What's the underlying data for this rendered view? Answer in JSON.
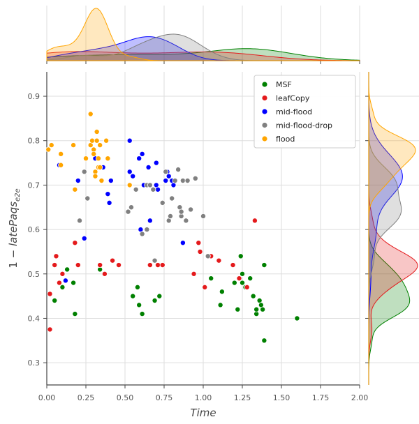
{
  "chart_data": {
    "type": "scatter",
    "title": "",
    "xlabel": "Time",
    "ylabel": "1 - latePaqs_e2e",
    "ylabel_parts": {
      "prefix": "1 − ",
      "main": "latePaqs",
      "sub": "e2e"
    },
    "xlim": [
      0,
      2
    ],
    "ylim": [
      0.25,
      0.955
    ],
    "xticks": [
      0.0,
      0.25,
      0.5,
      0.75,
      1.0,
      1.25,
      1.5,
      1.75,
      2.0
    ],
    "xtick_labels": [
      "0.00",
      "0.25",
      "0.50",
      "0.75",
      "1.00",
      "1.25",
      "1.50",
      "1.75",
      "2.00"
    ],
    "yticks": [
      0.3,
      0.4,
      0.5,
      0.6,
      0.7,
      0.8,
      0.9
    ],
    "ytick_labels": [
      "0.3",
      "0.4",
      "0.5",
      "0.6",
      "0.7",
      "0.8",
      "0.9"
    ],
    "grid": true,
    "legend_position": "top-right",
    "marginals": {
      "top": "kde",
      "right": "kde"
    },
    "series": [
      {
        "name": "MSF",
        "color": "#008000",
        "points": [
          [
            0.05,
            0.44
          ],
          [
            0.1,
            0.47
          ],
          [
            0.13,
            0.51
          ],
          [
            0.17,
            0.48
          ],
          [
            0.18,
            0.41
          ],
          [
            0.34,
            0.51
          ],
          [
            0.55,
            0.45
          ],
          [
            0.58,
            0.47
          ],
          [
            0.59,
            0.43
          ],
          [
            0.61,
            0.41
          ],
          [
            0.66,
            0.52
          ],
          [
            0.69,
            0.44
          ],
          [
            0.72,
            0.45
          ],
          [
            1.05,
            0.49
          ],
          [
            1.11,
            0.43
          ],
          [
            1.12,
            0.46
          ],
          [
            1.2,
            0.48
          ],
          [
            1.22,
            0.42
          ],
          [
            1.24,
            0.54
          ],
          [
            1.25,
            0.48
          ],
          [
            1.25,
            0.5
          ],
          [
            1.27,
            0.47
          ],
          [
            1.3,
            0.49
          ],
          [
            1.32,
            0.45
          ],
          [
            1.34,
            0.41
          ],
          [
            1.34,
            0.42
          ],
          [
            1.36,
            0.44
          ],
          [
            1.37,
            0.43
          ],
          [
            1.38,
            0.42
          ],
          [
            1.39,
            0.52
          ],
          [
            1.39,
            0.35
          ],
          [
            1.6,
            0.4
          ]
        ]
      },
      {
        "name": "leafCopy",
        "color": "#e41a1c",
        "points": [
          [
            0.02,
            0.375
          ],
          [
            0.02,
            0.455
          ],
          [
            0.05,
            0.52
          ],
          [
            0.06,
            0.54
          ],
          [
            0.08,
            0.48
          ],
          [
            0.1,
            0.5
          ],
          [
            0.18,
            0.57
          ],
          [
            0.2,
            0.52
          ],
          [
            0.34,
            0.52
          ],
          [
            0.37,
            0.5
          ],
          [
            0.42,
            0.53
          ],
          [
            0.46,
            0.52
          ],
          [
            0.66,
            0.52
          ],
          [
            0.71,
            0.52
          ],
          [
            0.74,
            0.52
          ],
          [
            0.94,
            0.5
          ],
          [
            0.97,
            0.57
          ],
          [
            0.98,
            0.55
          ],
          [
            1.01,
            0.47
          ],
          [
            1.05,
            0.54
          ],
          [
            1.1,
            0.53
          ],
          [
            1.19,
            0.52
          ],
          [
            1.23,
            0.49
          ],
          [
            1.28,
            0.47
          ],
          [
            1.33,
            0.62
          ]
        ]
      },
      {
        "name": "mid-flood",
        "color": "#0000ff",
        "points": [
          [
            0.08,
            0.745
          ],
          [
            0.12,
            0.485
          ],
          [
            0.2,
            0.71
          ],
          [
            0.24,
            0.58
          ],
          [
            0.31,
            0.76
          ],
          [
            0.36,
            0.74
          ],
          [
            0.39,
            0.68
          ],
          [
            0.4,
            0.66
          ],
          [
            0.41,
            0.71
          ],
          [
            0.53,
            0.73
          ],
          [
            0.53,
            0.8
          ],
          [
            0.55,
            0.72
          ],
          [
            0.57,
            0.69
          ],
          [
            0.59,
            0.76
          ],
          [
            0.6,
            0.6
          ],
          [
            0.61,
            0.77
          ],
          [
            0.62,
            0.7
          ],
          [
            0.65,
            0.74
          ],
          [
            0.66,
            0.62
          ],
          [
            0.7,
            0.7
          ],
          [
            0.7,
            0.75
          ],
          [
            0.71,
            0.69
          ],
          [
            0.76,
            0.71
          ],
          [
            0.77,
            0.73
          ],
          [
            0.78,
            0.72
          ],
          [
            0.8,
            0.71
          ],
          [
            0.81,
            0.7
          ],
          [
            0.87,
            0.57
          ]
        ]
      },
      {
        "name": "mid-flood-drop",
        "color": "#808080",
        "points": [
          [
            0.21,
            0.62
          ],
          [
            0.24,
            0.73
          ],
          [
            0.26,
            0.67
          ],
          [
            0.52,
            0.64
          ],
          [
            0.54,
            0.65
          ],
          [
            0.57,
            0.69
          ],
          [
            0.61,
            0.59
          ],
          [
            0.64,
            0.6
          ],
          [
            0.64,
            0.7
          ],
          [
            0.66,
            0.7
          ],
          [
            0.68,
            0.69
          ],
          [
            0.69,
            0.53
          ],
          [
            0.74,
            0.66
          ],
          [
            0.76,
            0.73
          ],
          [
            0.78,
            0.62
          ],
          [
            0.79,
            0.63
          ],
          [
            0.8,
            0.67
          ],
          [
            0.82,
            0.71
          ],
          [
            0.84,
            0.735
          ],
          [
            0.85,
            0.65
          ],
          [
            0.86,
            0.63
          ],
          [
            0.86,
            0.64
          ],
          [
            0.87,
            0.71
          ],
          [
            0.89,
            0.62
          ],
          [
            0.9,
            0.71
          ],
          [
            0.92,
            0.645
          ],
          [
            0.95,
            0.715
          ],
          [
            1.0,
            0.63
          ],
          [
            1.03,
            0.54
          ]
        ]
      },
      {
        "name": "flood",
        "color": "#ffa500",
        "points": [
          [
            0.01,
            0.78
          ],
          [
            0.03,
            0.79
          ],
          [
            0.09,
            0.77
          ],
          [
            0.09,
            0.745
          ],
          [
            0.17,
            0.79
          ],
          [
            0.18,
            0.69
          ],
          [
            0.25,
            0.76
          ],
          [
            0.28,
            0.79
          ],
          [
            0.28,
            0.86
          ],
          [
            0.29,
            0.8
          ],
          [
            0.3,
            0.78
          ],
          [
            0.3,
            0.77
          ],
          [
            0.31,
            0.73
          ],
          [
            0.31,
            0.72
          ],
          [
            0.32,
            0.8
          ],
          [
            0.32,
            0.82
          ],
          [
            0.33,
            0.74
          ],
          [
            0.33,
            0.76
          ],
          [
            0.34,
            0.79
          ],
          [
            0.34,
            0.74
          ],
          [
            0.35,
            0.71
          ],
          [
            0.38,
            0.8
          ],
          [
            0.39,
            0.76
          ],
          [
            0.53,
            0.7
          ]
        ]
      }
    ]
  }
}
